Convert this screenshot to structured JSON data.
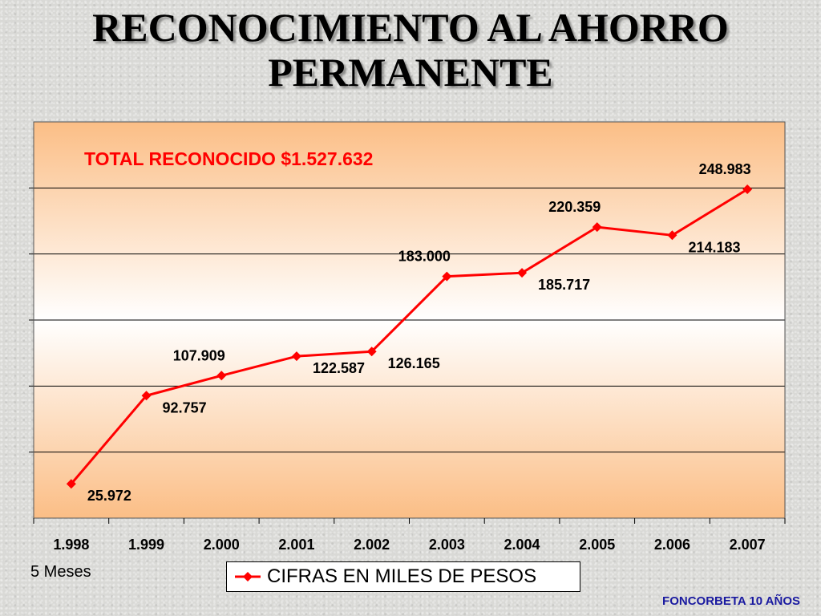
{
  "slide": {
    "title_line1": "RECONOCIMIENTO AL AHORRO",
    "title_line2": "PERMANENTE",
    "note_left": "5 Meses",
    "footer": "FONCORBETA 10 AÑOS"
  },
  "chart_data": {
    "type": "line",
    "annotation": "TOTAL RECONOCIDO $1.527.632",
    "categories": [
      "1.998",
      "1.999",
      "2.000",
      "2.001",
      "2.002",
      "2.003",
      "2.004",
      "2.005",
      "2.006",
      "2.007"
    ],
    "series": [
      {
        "name": "CIFRAS EN MILES DE PESOS",
        "values": [
          25972,
          92757,
          107909,
          122587,
          126165,
          183000,
          185717,
          220359,
          214183,
          248983
        ],
        "labels": [
          "25.972",
          "92.757",
          "107.909",
          "122.587",
          "126.165",
          "183.000",
          "185.717",
          "220.359",
          "214.183",
          "248.983"
        ],
        "color": "#ff0000"
      }
    ],
    "ylim": [
      0,
      300000
    ],
    "y_gridlines": 6,
    "legend_position": "bottom",
    "grid": true,
    "colors": {
      "plot_edge": "#fbc08a",
      "plot_center": "#ffffff",
      "line": "#ff0000",
      "annotation": "#ff0000"
    }
  }
}
